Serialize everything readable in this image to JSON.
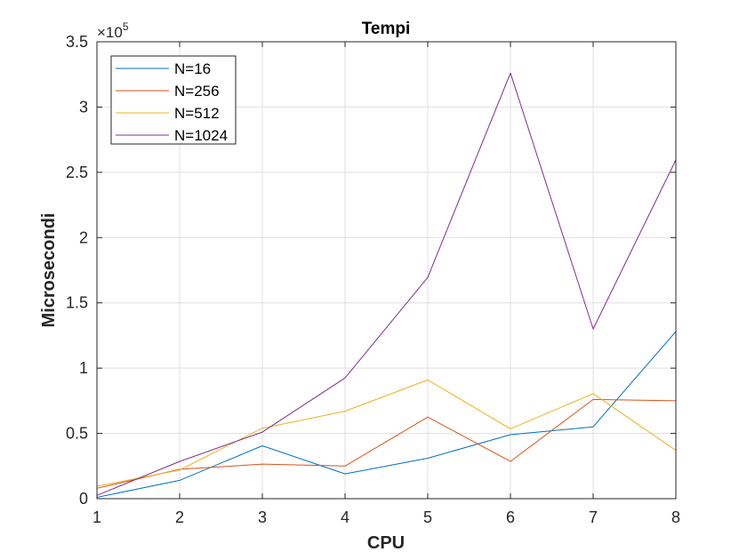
{
  "chart_data": {
    "type": "line",
    "title": "Tempi",
    "xlabel": "CPU",
    "ylabel": "Microsecondi",
    "y_exponent_label": {
      "base": "×10",
      "exp": "5"
    },
    "x": [
      1,
      2,
      3,
      4,
      5,
      6,
      7,
      8
    ],
    "xlim": [
      1,
      8
    ],
    "ylim": [
      0,
      350000
    ],
    "xticks": [
      1,
      2,
      3,
      4,
      5,
      6,
      7,
      8
    ],
    "xtick_labels": [
      "1",
      "2",
      "3",
      "4",
      "5",
      "6",
      "7",
      "8"
    ],
    "yticks": [
      0,
      50000,
      100000,
      150000,
      200000,
      250000,
      300000,
      350000
    ],
    "ytick_labels": [
      "0",
      "0.5",
      "1",
      "1.5",
      "2",
      "2.5",
      "3",
      "3.5"
    ],
    "grid": true,
    "legend_position": "top-left",
    "series": [
      {
        "name": "N=16",
        "color": "#0072BD",
        "values": [
          1000,
          14000,
          40500,
          19000,
          31000,
          49000,
          55000,
          128000
        ]
      },
      {
        "name": "N=256",
        "color": "#D95319",
        "values": [
          8000,
          22500,
          26500,
          25000,
          62500,
          28500,
          76000,
          75000
        ]
      },
      {
        "name": "N=512",
        "color": "#EDB120",
        "values": [
          9500,
          22000,
          54000,
          67000,
          91000,
          53500,
          80500,
          37000
        ]
      },
      {
        "name": "N=1024",
        "color": "#7E2F8E",
        "values": [
          2500,
          28500,
          51000,
          92500,
          169500,
          326000,
          130000,
          259500
        ]
      }
    ]
  }
}
